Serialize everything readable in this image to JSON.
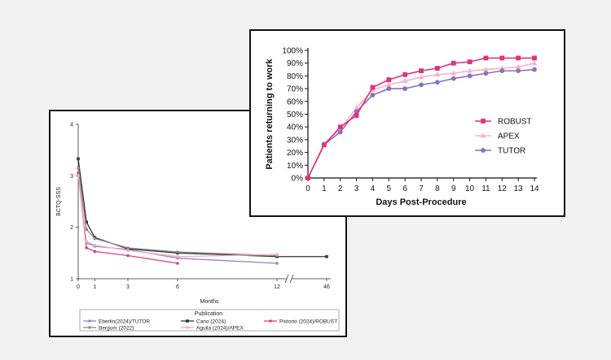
{
  "chart_data": [
    {
      "type": "line",
      "title": "",
      "xlabel": "Months",
      "ylabel": "BCTQ-SSS",
      "ylim": [
        1,
        4
      ],
      "y_ticks": [
        "1",
        "2",
        "3",
        "4"
      ],
      "x_ticks": [
        "0",
        "1",
        "3",
        "6",
        "12",
        "46"
      ],
      "axis_break": true,
      "legend_title": "Publication",
      "legend_position": "bottom",
      "grid": false,
      "series": [
        {
          "name": "Eberlin(2024)/TUTOR",
          "color": "#8e86c8",
          "marker": "circle",
          "x": [
            0,
            0.5,
            1,
            3,
            6,
            12
          ],
          "y": [
            3.05,
            1.7,
            1.63,
            1.57,
            1.4,
            1.3
          ]
        },
        {
          "name": "Cano (2024)",
          "color": "#333333",
          "marker": "square",
          "x": [
            0,
            0.5,
            1,
            3,
            6,
            12,
            46
          ],
          "y": [
            3.33,
            2.1,
            1.8,
            1.58,
            1.5,
            1.43,
            1.43
          ]
        },
        {
          "name": "Pistorio (2024)/ROBUST",
          "color": "#e03a8c",
          "marker": "circle",
          "x": [
            0,
            0.5,
            1,
            3,
            6
          ],
          "y": [
            3.05,
            1.6,
            1.53,
            1.45,
            1.3
          ]
        },
        {
          "name": "Bergum (2022)",
          "color": "#8a8a8a",
          "marker": "circle",
          "x": [
            0,
            0.5,
            1,
            3,
            6,
            12
          ],
          "y": [
            3.15,
            1.96,
            1.78,
            1.6,
            1.52,
            1.45
          ]
        },
        {
          "name": "Aguila (2024)/APEX",
          "color": "#f2a8c8",
          "marker": "circle",
          "x": [
            0,
            0.5,
            1,
            3,
            6,
            12
          ],
          "y": [
            3.0,
            1.72,
            1.65,
            1.55,
            1.43,
            1.47
          ]
        }
      ]
    },
    {
      "type": "line",
      "title": "",
      "xlabel": "Days Post-Procedure",
      "ylabel": "Patients returning to work",
      "ylim": [
        0,
        100
      ],
      "y_ticks": [
        "0%",
        "10%",
        "20%",
        "30%",
        "40%",
        "50%",
        "60%",
        "70%",
        "80%",
        "90%",
        "100%"
      ],
      "x_ticks": [
        "0",
        "1",
        "2",
        "3",
        "4",
        "5",
        "6",
        "7",
        "8",
        "9",
        "10",
        "11",
        "12",
        "13",
        "14"
      ],
      "legend_position": "right",
      "grid": false,
      "series": [
        {
          "name": "ROBUST",
          "color": "#e0327e",
          "marker": "square",
          "x": [
            0,
            1,
            2,
            3,
            4,
            5,
            6,
            7,
            8,
            9,
            10,
            11,
            12,
            13,
            14
          ],
          "y": [
            0,
            26,
            40,
            49,
            71,
            77,
            81,
            84,
            86,
            90,
            91,
            94,
            94,
            94,
            94
          ]
        },
        {
          "name": "APEX",
          "color": "#f3b4cc",
          "marker": "triangle",
          "x": [
            0,
            1,
            2,
            3,
            4,
            5,
            6,
            7,
            8,
            9,
            10,
            11,
            12,
            13,
            14
          ],
          "y": [
            0,
            27,
            38,
            55,
            69,
            73,
            76,
            79,
            81,
            82,
            84,
            85,
            86,
            87,
            90
          ]
        },
        {
          "name": "TUTOR",
          "color": "#8b6fc0",
          "marker": "circle",
          "x": [
            0,
            1,
            2,
            3,
            4,
            5,
            6,
            7,
            8,
            9,
            10,
            11,
            12,
            13,
            14
          ],
          "y": [
            0,
            26,
            36,
            52,
            65,
            70,
            70,
            73,
            75,
            78,
            80,
            82,
            84,
            84,
            85
          ]
        }
      ]
    }
  ]
}
